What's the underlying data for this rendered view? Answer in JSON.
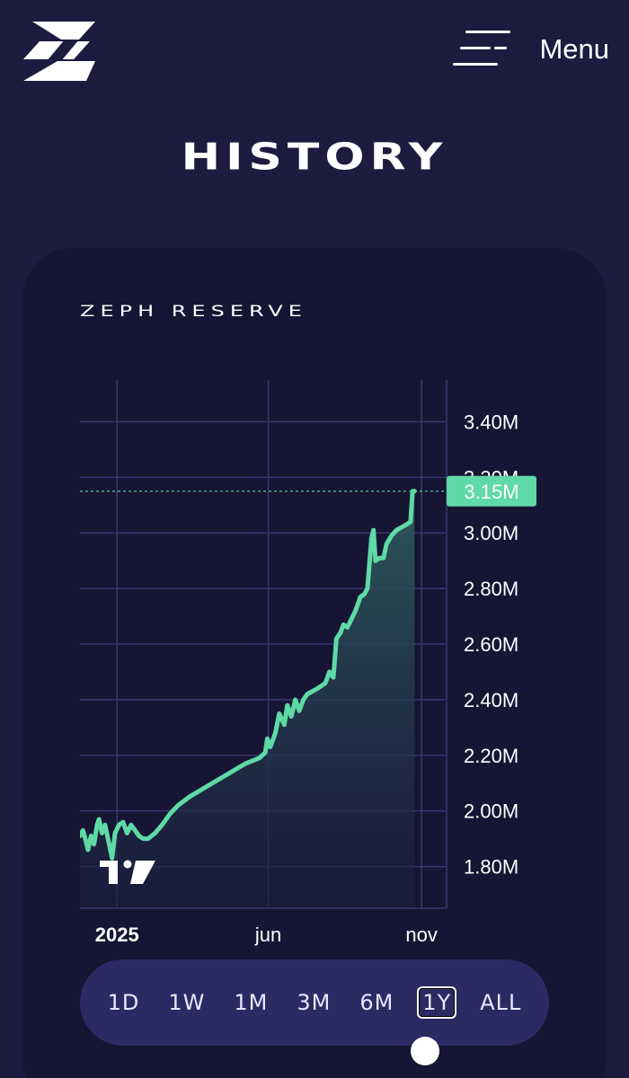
{
  "header": {
    "logo_icon": "zeph-logo-icon",
    "menu_icon": "hamburger-menu-icon",
    "menu_label": "Menu"
  },
  "page": {
    "title": "HISTORY"
  },
  "card": {
    "title": "ZEPH RESERVE"
  },
  "colors": {
    "background": "#1d1b3f",
    "card": "#161533",
    "line": "#5fd9a5",
    "grid": "#3a3872",
    "range_bar": "#2c2a62"
  },
  "chart_data": {
    "type": "area",
    "title": "ZEPH RESERVE",
    "xlabel": "",
    "ylabel": "",
    "x_ticks": [
      "2025",
      "jun",
      "nov"
    ],
    "y_ticks": [
      "1.80M",
      "2.00M",
      "2.20M",
      "2.40M",
      "2.60M",
      "2.80M",
      "3.00M",
      "3.20M",
      "3.40M"
    ],
    "ylim": [
      1.65,
      3.55
    ],
    "xlim": [
      "2024-11-25",
      "2025-11-26"
    ],
    "last_value": 3.15,
    "last_value_label": "3.15M",
    "grid": true,
    "watermark": "TradingView",
    "series": [
      {
        "values": [
          [
            "2024-11-25",
            1.91
          ],
          [
            "2024-11-28",
            1.93
          ],
          [
            "2024-12-01",
            1.89
          ],
          [
            "2024-12-03",
            1.86
          ],
          [
            "2024-12-06",
            1.91
          ],
          [
            "2024-12-09",
            1.88
          ],
          [
            "2024-12-12",
            1.95
          ],
          [
            "2024-12-14",
            1.97
          ],
          [
            "2024-12-17",
            1.92
          ],
          [
            "2024-12-20",
            1.95
          ],
          [
            "2024-12-23",
            1.9
          ],
          [
            "2024-12-27",
            1.83
          ],
          [
            "2024-12-30",
            1.92
          ],
          [
            "2025-01-03",
            1.95
          ],
          [
            "2025-01-07",
            1.96
          ],
          [
            "2025-01-11",
            1.92
          ],
          [
            "2025-01-15",
            1.95
          ],
          [
            "2025-01-19",
            1.93
          ],
          [
            "2025-01-23",
            1.91
          ],
          [
            "2025-01-27",
            1.9
          ],
          [
            "2025-02-01",
            1.9
          ],
          [
            "2025-02-08",
            1.92
          ],
          [
            "2025-02-15",
            1.95
          ],
          [
            "2025-02-23",
            1.99
          ],
          [
            "2025-03-03",
            2.02
          ],
          [
            "2025-03-14",
            2.05
          ],
          [
            "2025-03-28",
            2.08
          ],
          [
            "2025-04-11",
            2.11
          ],
          [
            "2025-04-25",
            2.14
          ],
          [
            "2025-05-09",
            2.17
          ],
          [
            "2025-05-23",
            2.19
          ],
          [
            "2025-05-29",
            2.21
          ],
          [
            "2025-05-31",
            2.26
          ],
          [
            "2025-06-03",
            2.23
          ],
          [
            "2025-06-08",
            2.28
          ],
          [
            "2025-06-12",
            2.35
          ],
          [
            "2025-06-17",
            2.31
          ],
          [
            "2025-06-20",
            2.38
          ],
          [
            "2025-06-24",
            2.34
          ],
          [
            "2025-06-28",
            2.4
          ],
          [
            "2025-07-02",
            2.36
          ],
          [
            "2025-07-06",
            2.4
          ],
          [
            "2025-07-10",
            2.42
          ],
          [
            "2025-07-15",
            2.43
          ],
          [
            "2025-07-20",
            2.44
          ],
          [
            "2025-07-24",
            2.45
          ],
          [
            "2025-07-28",
            2.46
          ],
          [
            "2025-08-01",
            2.5
          ],
          [
            "2025-08-05",
            2.48
          ],
          [
            "2025-08-08",
            2.62
          ],
          [
            "2025-08-12",
            2.64
          ],
          [
            "2025-08-15",
            2.67
          ],
          [
            "2025-08-19",
            2.66
          ],
          [
            "2025-08-23",
            2.69
          ],
          [
            "2025-08-27",
            2.72
          ],
          [
            "2025-09-01",
            2.77
          ],
          [
            "2025-09-05",
            2.78
          ],
          [
            "2025-09-08",
            2.8
          ],
          [
            "2025-09-12",
            2.98
          ],
          [
            "2025-09-14",
            3.01
          ],
          [
            "2025-09-16",
            2.9
          ],
          [
            "2025-09-20",
            2.91
          ],
          [
            "2025-09-24",
            2.91
          ],
          [
            "2025-09-27",
            2.96
          ],
          [
            "2025-10-02",
            2.99
          ],
          [
            "2025-10-07",
            3.01
          ],
          [
            "2025-10-12",
            3.02
          ],
          [
            "2025-10-17",
            3.03
          ],
          [
            "2025-10-21",
            3.04
          ],
          [
            "2025-10-23",
            3.15
          ],
          [
            "2025-10-25",
            3.15
          ]
        ]
      }
    ]
  },
  "range_selector": {
    "options": [
      "1D",
      "1W",
      "1M",
      "3M",
      "6M",
      "1Y",
      "ALL"
    ],
    "selected": "1Y"
  }
}
